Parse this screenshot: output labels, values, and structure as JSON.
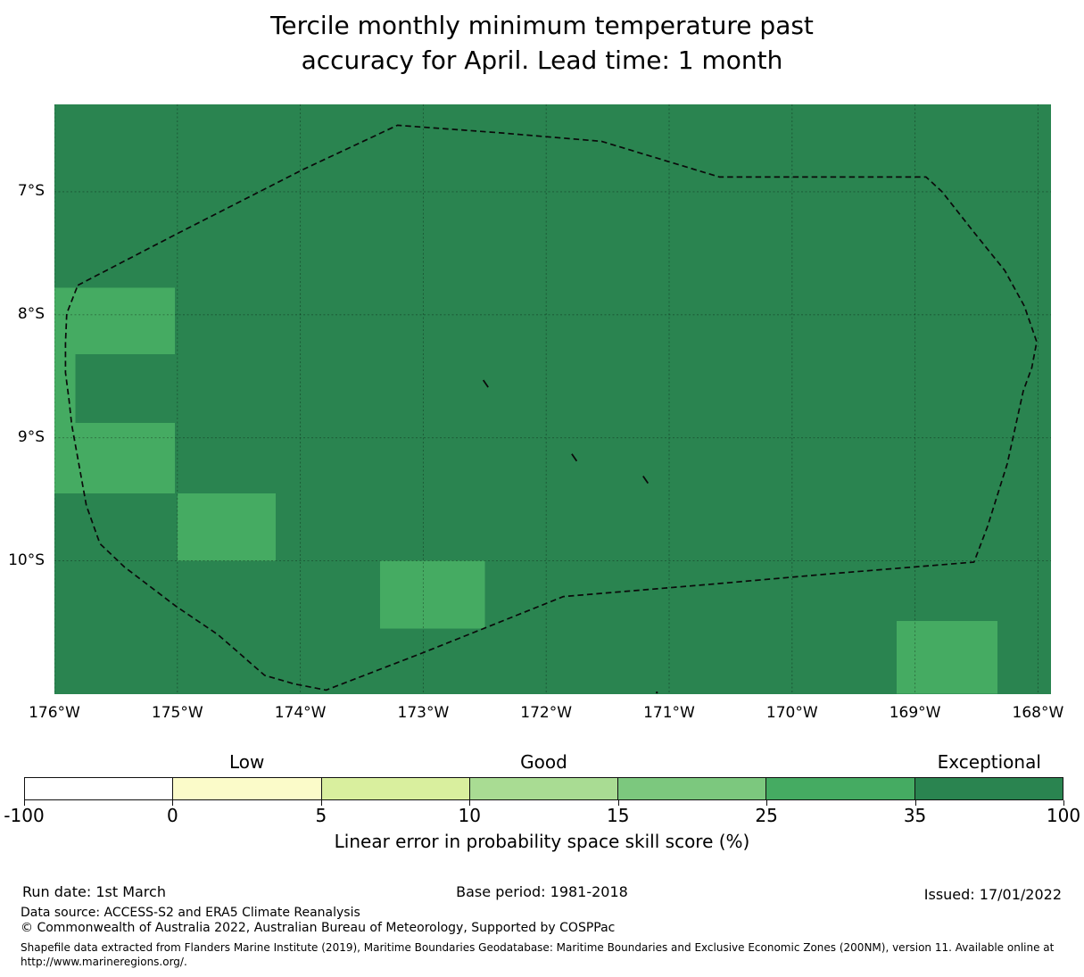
{
  "title": "Tercile monthly minimum temperature past\naccuracy for April. Lead time: 1 month",
  "map": {
    "x_tick_labels": [
      "176°W",
      "175°W",
      "174°W",
      "173°W",
      "172°W",
      "171°W",
      "170°W",
      "169°W",
      "168°W"
    ],
    "y_tick_labels": [
      "7°S",
      "8°S",
      "9°S",
      "10°S"
    ]
  },
  "chart_data": {
    "type": "heatmap",
    "title": "Tercile monthly minimum temperature past accuracy for April. Lead time: 1 month",
    "xlabel_ticks_lon_w": [
      176,
      175,
      174,
      173,
      172,
      171,
      170,
      169,
      168
    ],
    "ylabel_ticks_lat_s": [
      7,
      8,
      9,
      10
    ],
    "lon_w_range": [
      176.0,
      167.89
    ],
    "lat_s_range": [
      6.29,
      11.08
    ],
    "grid": true,
    "background_bin": "35-100",
    "background_color": "#2a8450",
    "highlight_bin": "25-35",
    "highlight_color": "#45ab62",
    "cells": [
      {
        "lon_w": [
          176.0,
          175.02
        ],
        "lat_s": [
          7.78,
          8.32
        ],
        "bin": "25-35"
      },
      {
        "lon_w": [
          176.0,
          175.83
        ],
        "lat_s": [
          8.32,
          8.88
        ],
        "bin": "25-35"
      },
      {
        "lon_w": [
          176.0,
          175.02
        ],
        "lat_s": [
          8.88,
          9.45
        ],
        "bin": "25-35"
      },
      {
        "lon_w": [
          175.0,
          174.2
        ],
        "lat_s": [
          9.45,
          10.0
        ],
        "bin": "25-35"
      },
      {
        "lon_w": [
          173.35,
          172.5
        ],
        "lat_s": [
          10.0,
          10.55
        ],
        "bin": "25-35"
      },
      {
        "lon_w": [
          169.15,
          168.33
        ],
        "lat_s": [
          10.49,
          11.08
        ],
        "bin": "25-35"
      }
    ],
    "eez_boundary_lonw_lats": [
      [
        175.81,
        7.76
      ],
      [
        175.0,
        7.34
      ],
      [
        173.98,
        6.82
      ],
      [
        173.21,
        6.46
      ],
      [
        172.39,
        6.52
      ],
      [
        171.55,
        6.59
      ],
      [
        170.59,
        6.88
      ],
      [
        169.77,
        6.88
      ],
      [
        168.91,
        6.88
      ],
      [
        168.78,
        7.0
      ],
      [
        168.52,
        7.33
      ],
      [
        168.27,
        7.64
      ],
      [
        168.11,
        7.93
      ],
      [
        168.01,
        8.22
      ],
      [
        168.05,
        8.43
      ],
      [
        168.12,
        8.62
      ],
      [
        168.25,
        9.21
      ],
      [
        168.41,
        9.72
      ],
      [
        168.52,
        10.01
      ],
      [
        169.63,
        10.1
      ],
      [
        170.66,
        10.19
      ],
      [
        171.86,
        10.29
      ],
      [
        172.51,
        10.55
      ],
      [
        173.01,
        10.75
      ],
      [
        173.4,
        10.9
      ],
      [
        173.79,
        11.05
      ],
      [
        174.05,
        11.0
      ],
      [
        174.29,
        10.93
      ],
      [
        174.67,
        10.6
      ],
      [
        175.01,
        10.37
      ],
      [
        175.43,
        10.05
      ],
      [
        175.63,
        9.86
      ],
      [
        175.74,
        9.55
      ],
      [
        175.86,
        8.89
      ],
      [
        175.88,
        8.7
      ],
      [
        175.91,
        8.47
      ],
      [
        175.91,
        8.23
      ],
      [
        175.9,
        7.99
      ]
    ],
    "islands_lonw_lats": [
      {
        "lon": 172.49,
        "lat": 8.56
      },
      {
        "lon": 171.77,
        "lat": 9.16
      },
      {
        "lon": 171.19,
        "lat": 9.34
      },
      {
        "lon": 171.1,
        "lat": 11.07,
        "dot": true
      }
    ]
  },
  "colorbar": {
    "bins": [
      {
        "range": "-100 to 0",
        "color": "#ffffff"
      },
      {
        "range": "0 to 5",
        "color": "#fbfbc9"
      },
      {
        "range": "5 to 10",
        "color": "#d9ef9e"
      },
      {
        "range": "10 to 15",
        "color": "#a9dc93"
      },
      {
        "range": "15 to 25",
        "color": "#7cc87e"
      },
      {
        "range": "25 to 35",
        "color": "#45ab62"
      },
      {
        "range": "35 to 100",
        "color": "#2a8450"
      }
    ],
    "tick_labels": [
      "-100",
      "0",
      "5",
      "10",
      "15",
      "25",
      "35",
      "100"
    ],
    "categories": [
      {
        "label": "Low",
        "segment_index": 1
      },
      {
        "label": "Good",
        "segment_index": 3
      },
      {
        "label": "Exceptional",
        "segment_index": 6
      }
    ],
    "axis_label": "Linear error in probability space skill score (%)"
  },
  "footer": {
    "run_date": "Run date: 1st March",
    "base_period": "Base period: 1981-2018",
    "issued": "Issued: 17/01/2022",
    "data_source": "Data source: ACCESS-S2 and ERA5 Climate Reanalysis",
    "copyright": "© Commonwealth of Australia 2022, Australian Bureau of Meteorology, Supported by COSPPac",
    "shapefile_note": "Shapefile data extracted from Flanders Marine Institute (2019), Maritime Boundaries Geodatabase: Maritime Boundaries and Exclusive Economic Zones (200NM), version 11. Available online at\nhttp://www.marineregions.org/."
  }
}
